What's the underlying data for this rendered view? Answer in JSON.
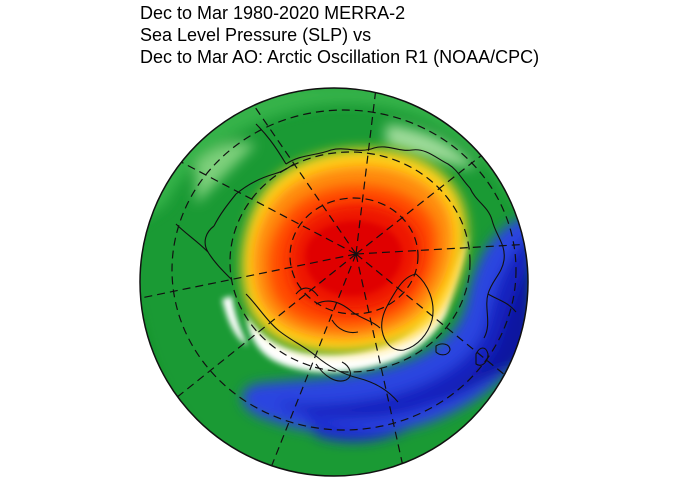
{
  "title": {
    "line1": "Dec to Mar 1980-2020 MERRA-2",
    "line2": "Sea Level Pressure (SLP) vs",
    "line3": "Dec to Mar AO: Arctic Oscillation R1 (NOAA/CPC)"
  },
  "map": {
    "projection": "orthographic-north-polar",
    "grid": true,
    "coastlines": true,
    "colors": {
      "strong_positive": "#e60000",
      "positive": "#ff7700",
      "weak_positive": "#ffcc00",
      "neutral": "#ffffff",
      "weak_negative": "#22a63a",
      "negative": "#0b7a23",
      "strong_negative": "#1a2fd6",
      "very_strong_negative": "#0a18a8"
    }
  }
}
